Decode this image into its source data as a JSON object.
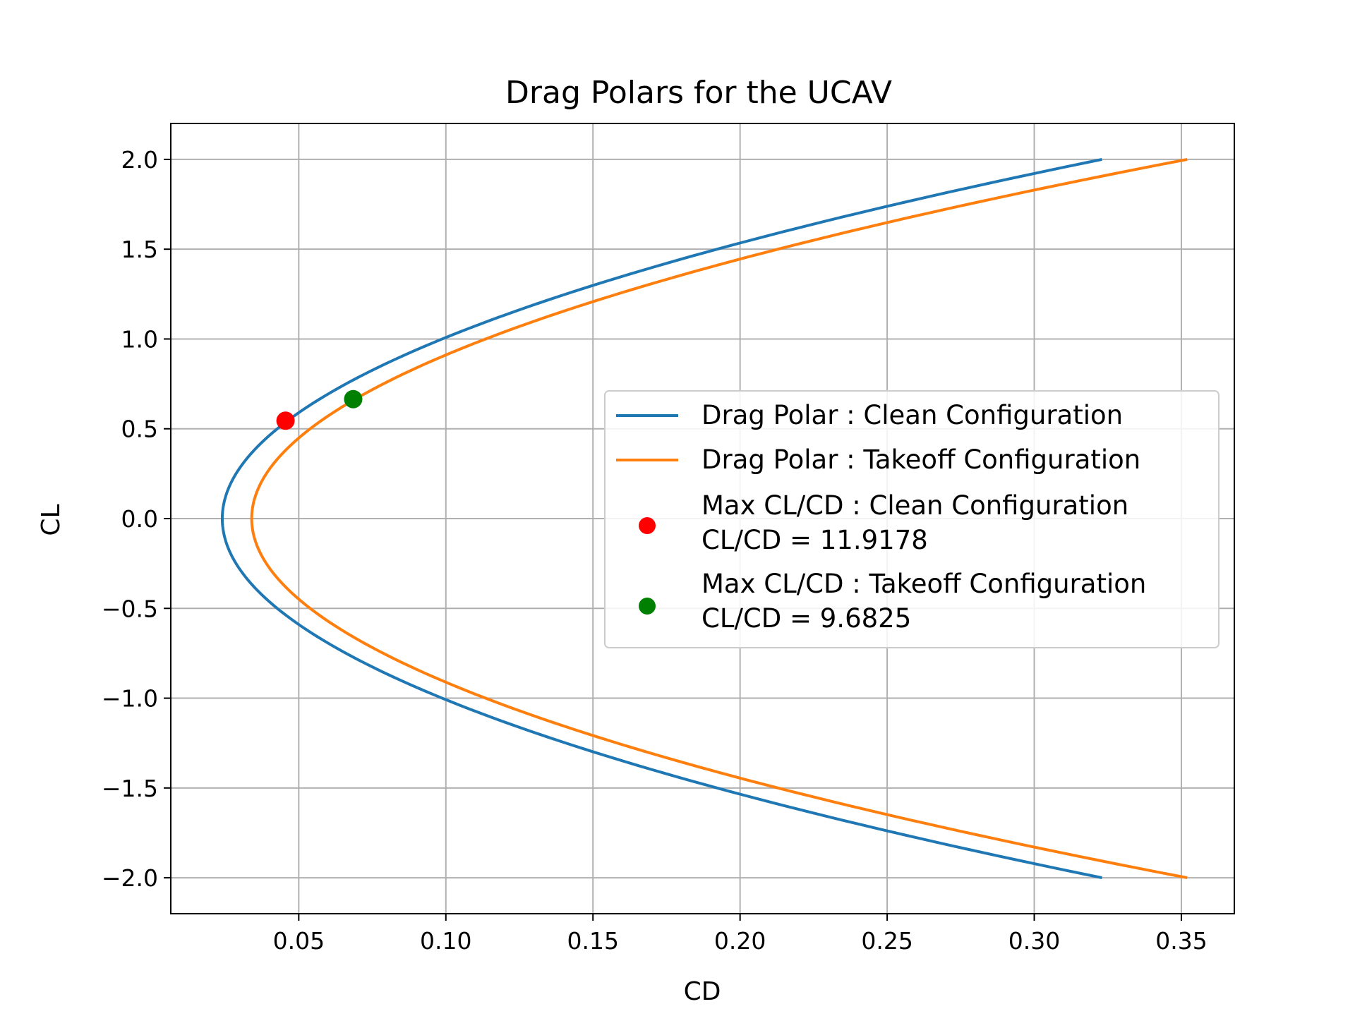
{
  "chart_data": {
    "type": "line",
    "title": "Drag Polars for the UCAV",
    "xlabel": "CD",
    "ylabel": "CL",
    "xlim": [
      0.0065,
      0.368
    ],
    "ylim": [
      -2.2,
      2.2
    ],
    "grid": true,
    "x_ticks": [
      {
        "value": 0.05,
        "label": "0.05"
      },
      {
        "value": 0.1,
        "label": "0.10"
      },
      {
        "value": 0.15,
        "label": "0.15"
      },
      {
        "value": 0.2,
        "label": "0.20"
      },
      {
        "value": 0.25,
        "label": "0.25"
      },
      {
        "value": 0.3,
        "label": "0.30"
      },
      {
        "value": 0.35,
        "label": "0.35"
      }
    ],
    "y_ticks": [
      {
        "value": 2.0,
        "label": "2.0"
      },
      {
        "value": 1.5,
        "label": "1.5"
      },
      {
        "value": 1.0,
        "label": "1.0"
      },
      {
        "value": 0.5,
        "label": "0.5"
      },
      {
        "value": 0.0,
        "label": "0.0"
      },
      {
        "value": -0.5,
        "label": "−0.5"
      },
      {
        "value": -1.0,
        "label": "−1.0"
      },
      {
        "value": -1.5,
        "label": "−1.5"
      },
      {
        "value": -2.0,
        "label": "−2.0"
      }
    ],
    "series": [
      {
        "name": "Drag Polar : Clean Configuration",
        "color": "#1f77b4",
        "y": [
          -2.0,
          -1.5,
          -1.0,
          -0.5,
          0.0,
          0.5,
          1.0,
          1.5,
          2.0
        ],
        "x": [
          0.323,
          0.2055,
          0.1,
          0.0505,
          0.024,
          0.0505,
          0.1,
          0.2055,
          0.323
        ]
      },
      {
        "name": "Drag Polar : Takeoff Configuration",
        "color": "#ff7f0e",
        "y": [
          -2.0,
          -1.5,
          -1.0,
          -0.5,
          0.0,
          0.5,
          1.0,
          1.5,
          2.0
        ],
        "x": [
          0.352,
          0.2267,
          0.1129,
          0.0578,
          0.034,
          0.0578,
          0.1129,
          0.2267,
          0.352
        ]
      }
    ],
    "points": [
      {
        "name": "Max CL/CD : Clean Configuration",
        "value_label": "CL/CD = 11.9178",
        "x": 0.0455,
        "y": 0.545,
        "color": "#ff0000"
      },
      {
        "name": "Max CL/CD : Takeoff Configuration",
        "value_label": "CL/CD = 9.6825",
        "x": 0.0685,
        "y": 0.665,
        "color": "#008000"
      }
    ],
    "legend_position": "center-right"
  }
}
